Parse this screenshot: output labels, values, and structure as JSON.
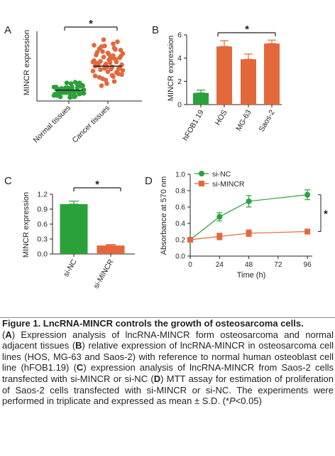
{
  "colors": {
    "green": "#2aa13a",
    "orange": "#e2683c",
    "dark": "#231f20"
  },
  "chart_data": [
    {
      "panel": "A",
      "type": "scatter",
      "ylabel": "MINCR expression",
      "categories": [
        "Normal tissues",
        "Cancer tissues"
      ],
      "series": [
        {
          "values": [
            2.0,
            1.2,
            1.5,
            2.6,
            0.8,
            1.9,
            1.3,
            2.2,
            0.6,
            1.7,
            2.4,
            1.0,
            1.4,
            1.8,
            2.1,
            0.9,
            1.6,
            2.7,
            1.1,
            1.5,
            0.5,
            1.3,
            2.0,
            1.7,
            0.7,
            2.3,
            1.2,
            1.9,
            1.4,
            0.8,
            1.6,
            2.5,
            1.0,
            1.8,
            1.2,
            0.6,
            2.2,
            1.5,
            1.3,
            1.9,
            0.9,
            1.7,
            2.0,
            1.1,
            1.4,
            2.6,
            0.7,
            1.6,
            1.8,
            1.0
          ],
          "mean": 1.55,
          "color": "#2aa13a"
        },
        {
          "values": [
            5.0,
            6.5,
            3.8,
            7.5,
            4.2,
            5.6,
            8.0,
            3.2,
            6.1,
            4.8,
            7.0,
            5.3,
            2.8,
            6.8,
            4.5,
            5.9,
            8.5,
            3.6,
            6.3,
            4.9,
            7.3,
            5.1,
            2.5,
            6.0,
            4.3,
            7.8,
            5.5,
            3.9,
            6.6,
            4.7,
            8.2,
            5.2,
            3.4,
            6.9,
            4.1,
            5.8,
            7.1,
            4.6,
            6.2,
            5.4,
            3.0,
            7.6,
            4.4,
            5.7,
            6.7,
            4.0,
            5.0,
            8.8,
            3.7,
            6.4,
            5.3,
            4.9,
            7.4,
            5.6,
            2.2,
            6.1,
            4.6,
            5.1,
            7.9,
            3.5
          ],
          "mean": 5.0,
          "color": "#e2683c"
        }
      ],
      "significance": "*"
    },
    {
      "panel": "B",
      "type": "bar",
      "ylabel": "MINCR expression",
      "categories": [
        "hFOB1.19",
        "HOS",
        "MG-63",
        "Saos-2"
      ],
      "values": [
        1.0,
        5.0,
        3.9,
        5.25
      ],
      "errors": [
        0.25,
        0.5,
        0.45,
        0.3
      ],
      "colors": [
        "#2aa13a",
        "#e2683c",
        "#e2683c",
        "#e2683c"
      ],
      "ylim": [
        0,
        6
      ],
      "yticks": [
        "0",
        "2",
        "4",
        "6"
      ],
      "significance": "*"
    },
    {
      "panel": "C",
      "type": "bar",
      "ylabel": "MINCR expression",
      "categories": [
        "si-NC",
        "si-MINCR"
      ],
      "values": [
        1.0,
        0.17
      ],
      "errors": [
        0.06,
        0.02
      ],
      "colors": [
        "#2aa13a",
        "#e2683c"
      ],
      "ylim": [
        0,
        1.2
      ],
      "yticks": [
        "0.0",
        "0.3",
        "0.6",
        "0.9",
        "1.2"
      ],
      "significance": "*"
    },
    {
      "panel": "D",
      "type": "line",
      "xlabel": "Time (h)",
      "ylabel": "Absorbance at 570 nm",
      "x": [
        0,
        24,
        48,
        96
      ],
      "xticks": [
        "0",
        "24",
        "48",
        "72",
        "96"
      ],
      "xlim": [
        0,
        100
      ],
      "yticks": [
        "0.0",
        "0.2",
        "0.4",
        "0.6",
        "0.8",
        "1.0"
      ],
      "ylim": [
        0,
        1.0
      ],
      "series": [
        {
          "name": "si-NC",
          "values": [
            0.2,
            0.48,
            0.67,
            0.75
          ],
          "errors": [
            0.0,
            0.05,
            0.07,
            0.06
          ],
          "color": "#2aa13a",
          "marker": "circle"
        },
        {
          "name": "si-MINCR",
          "values": [
            0.2,
            0.24,
            0.28,
            0.3
          ],
          "errors": [
            0.0,
            0.04,
            0.04,
            0.03
          ],
          "color": "#e2683c",
          "marker": "square"
        }
      ],
      "significance": "*"
    }
  ],
  "caption": {
    "title": "Figure 1. LncRNA-MINCR controls the growth of osteosarcoma cells.",
    "body": [
      {
        "t": "("
      },
      {
        "t": "A",
        "b": true
      },
      {
        "t": ") Expression analysis of lncRNA-MINCR form osteosarcoma and normal adjacent tissues ("
      },
      {
        "t": "B",
        "b": true
      },
      {
        "t": ") relative expression of lncRNA-MINCR in osteosarcoma cell lines (HOS, MG-63 and Saos-2) with reference to normal human osteoblast cell line (hFOB1.19) ("
      },
      {
        "t": "C",
        "b": true
      },
      {
        "t": ") expression analysis of lncRNA-MINCR from Saos-2 cells transfected with si-MINCR or si-NC ("
      },
      {
        "t": "D",
        "b": true
      },
      {
        "t": ") MTT assay for estimation of proliferation of Saos-2 cells transfected with si-MINCR or si-NC. The experiments were performed in triplicate and expressed as mean ± S.D. (*"
      },
      {
        "t": "P",
        "i": true
      },
      {
        "t": "<0.05)"
      }
    ]
  }
}
